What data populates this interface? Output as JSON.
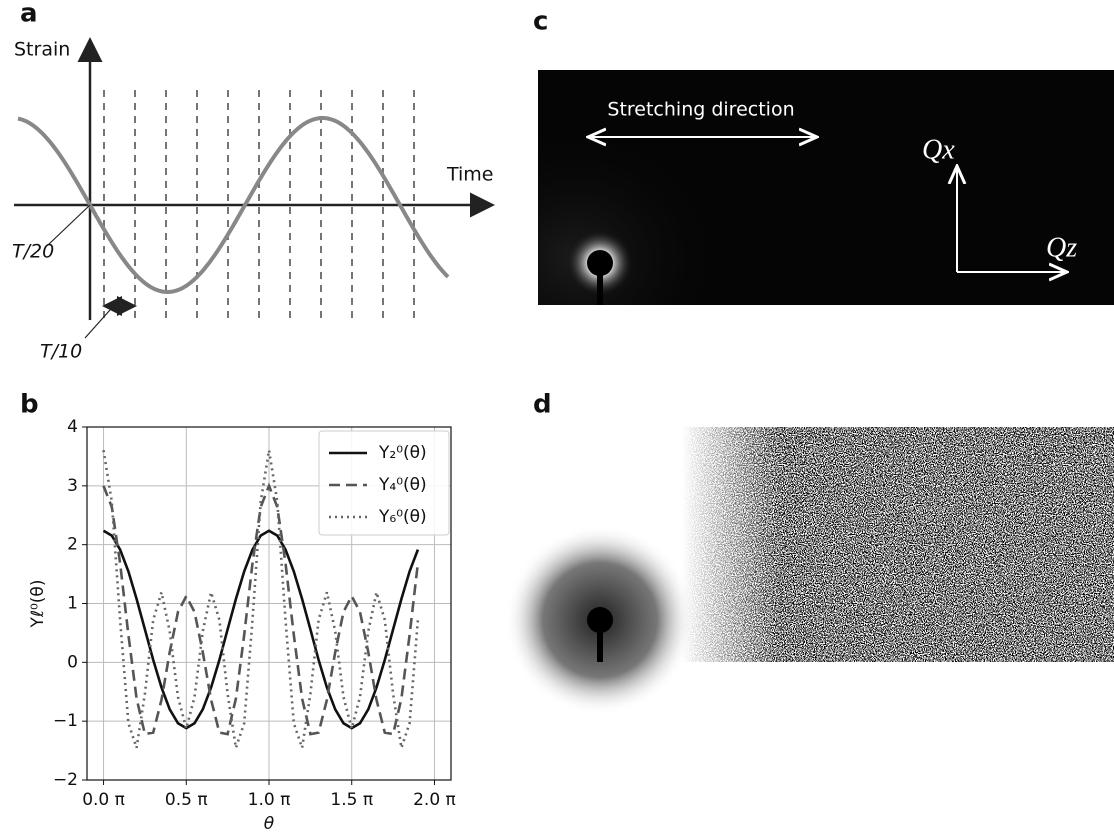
{
  "panel_a": {
    "label": "a",
    "y_label": "Strain",
    "x_label": "Time",
    "marker_1": "T/20",
    "marker_2": "T/10"
  },
  "chart_data": {
    "type": "line",
    "panel_label": "b",
    "xlabel": "θ",
    "ylabel": "Yℓ⁰(θ)",
    "x": [
      0,
      0.05,
      0.1,
      0.15,
      0.2,
      0.25,
      0.3,
      0.35,
      0.4,
      0.45,
      0.5,
      0.55,
      0.6,
      0.65,
      0.7,
      0.75,
      0.8,
      0.85,
      0.9,
      0.95,
      1.0,
      1.05,
      1.1,
      1.15,
      1.2,
      1.25,
      1.3,
      1.35,
      1.4,
      1.45,
      1.5,
      1.55,
      1.6,
      1.65,
      1.7,
      1.75,
      1.8,
      1.85,
      1.9
    ],
    "series": [
      {
        "name": "Y₂⁰(θ)",
        "color": "#111111",
        "dash": "solid",
        "values": [
          2.236,
          2.154,
          1.916,
          1.545,
          1.077,
          0.559,
          0.041,
          -0.427,
          -0.798,
          -1.036,
          -1.118,
          -1.036,
          -0.798,
          -0.427,
          0.041,
          0.559,
          1.077,
          1.545,
          1.916,
          2.154,
          2.236,
          2.154,
          1.916,
          1.545,
          1.077,
          0.559,
          0.041,
          -0.427,
          -0.798,
          -1.036,
          -1.118,
          -1.036,
          -0.798,
          -0.427,
          0.041,
          0.559,
          1.077,
          1.545,
          1.916
        ]
      },
      {
        "name": "Y₄⁰(θ)",
        "color": "#555555",
        "dash": "dashed",
        "values": [
          3.0,
          2.641,
          1.687,
          0.466,
          -0.616,
          -1.219,
          -1.195,
          -0.636,
          0.17,
          0.858,
          1.125,
          0.858,
          0.17,
          -0.636,
          -1.195,
          -1.219,
          -0.616,
          0.466,
          1.687,
          2.641,
          3.0,
          2.641,
          1.687,
          0.466,
          -0.616,
          -1.219,
          -1.195,
          -0.636,
          0.17,
          0.858,
          1.125,
          0.858,
          0.17,
          -0.636,
          -1.195,
          -1.219,
          -0.616,
          0.466,
          1.687
        ]
      },
      {
        "name": "Y₆⁰(θ)",
        "color": "#666666",
        "dash": "dotted",
        "values": [
          3.606,
          2.73,
          0.722,
          -1.035,
          -1.453,
          -0.535,
          0.722,
          1.191,
          0.53,
          -0.59,
          -1.127,
          -0.59,
          0.53,
          1.191,
          0.722,
          -0.535,
          -1.453,
          -1.035,
          0.722,
          2.73,
          3.606,
          2.73,
          0.722,
          -1.035,
          -1.453,
          -0.535,
          0.722,
          1.191,
          0.53,
          -0.59,
          -1.127,
          -0.59,
          0.53,
          1.191,
          0.722,
          -0.535,
          -1.453,
          -1.035,
          0.722
        ]
      }
    ],
    "xlim": [
      -0.1,
      2.1
    ],
    "ylim": [
      -2,
      4
    ],
    "xticks": [
      {
        "value": 0,
        "label": "0.0 π"
      },
      {
        "value": 0.5,
        "label": "0.5 π"
      },
      {
        "value": 1,
        "label": "1.0 π"
      },
      {
        "value": 1.5,
        "label": "1.5 π"
      },
      {
        "value": 2,
        "label": "2.0 π"
      }
    ],
    "yticks": [
      {
        "value": -2,
        "label": "−2"
      },
      {
        "value": -1,
        "label": "−1"
      },
      0,
      1,
      2,
      3,
      4
    ],
    "grid": true,
    "legend": "upper right"
  },
  "panel_c": {
    "label": "c",
    "annotation": "Stretching direction",
    "axis_x": "Qx",
    "axis_z": "Qz"
  },
  "panel_d": {
    "label": "d"
  }
}
